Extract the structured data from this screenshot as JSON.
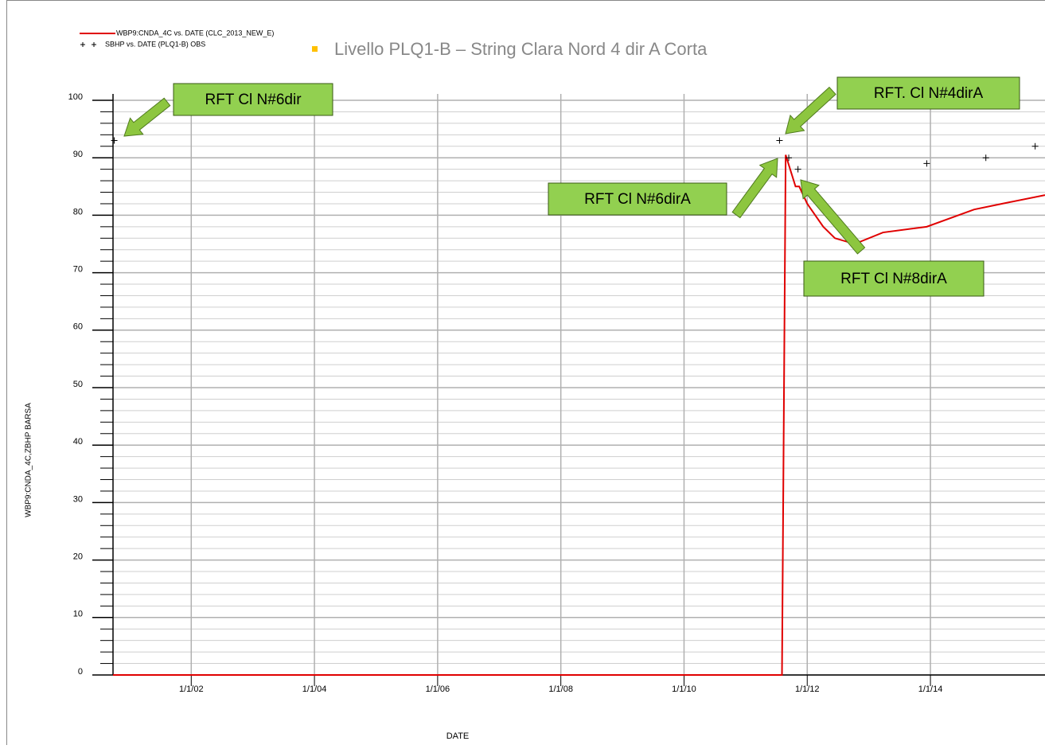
{
  "chart_data": {
    "type": "line",
    "title": "Livello PLQ1-B – String Clara Nord 4 dir A Corta",
    "x_label": "DATE",
    "y_label": "WBP9:CNDA_4C,ZBHP   BARSA",
    "xlim": [
      2000.73,
      2015.86
    ],
    "xticks": [
      {
        "value": 2002,
        "label": "1/1/02"
      },
      {
        "value": 2004,
        "label": "1/1/04"
      },
      {
        "value": 2006,
        "label": "1/1/06"
      },
      {
        "value": 2008,
        "label": "1/1/08"
      },
      {
        "value": 2010,
        "label": "1/1/10"
      },
      {
        "value": 2012,
        "label": "1/1/12"
      },
      {
        "value": 2014,
        "label": "1/1/14"
      }
    ],
    "ylim": [
      0,
      100
    ],
    "yticks": [
      0,
      10,
      20,
      30,
      40,
      50,
      60,
      70,
      80,
      90,
      100
    ],
    "yminorticks": [
      2,
      4,
      6,
      8,
      12,
      14,
      16,
      18,
      22,
      24,
      26,
      28,
      32,
      34,
      36,
      38,
      42,
      44,
      46,
      48,
      52,
      54,
      56,
      58,
      62,
      64,
      66,
      68,
      72,
      74,
      76,
      78,
      82,
      84,
      86,
      88,
      92,
      94,
      96,
      98
    ],
    "grid": true,
    "series": [
      {
        "name": "WBP9:CNDA_4C  vs.  DATE (CLC_2013_NEW_E)",
        "color": "#e00000",
        "marker": "none",
        "x": [
          2000.73,
          2011.59,
          2011.65,
          2011.81,
          2011.87,
          2012.0,
          2012.26,
          2012.45,
          2012.77,
          2013.23,
          2013.94,
          2014.71,
          2015.16,
          2015.86
        ],
        "values": [
          0,
          0,
          90.5,
          85,
          85,
          82,
          78,
          76,
          75,
          77,
          78,
          81,
          82,
          83.5
        ]
      },
      {
        "name": "SBHP  vs.  DATE (PLQ1-B) OBS",
        "color": "#000000",
        "marker": "plus",
        "x": [
          2000.75,
          2011.55,
          2011.7,
          2011.85,
          2013.94,
          2014.9,
          2015.7
        ],
        "values": [
          93,
          93,
          90,
          88,
          89,
          90,
          92
        ]
      }
    ],
    "annotations": [
      "RFT Cl N#6dir",
      "RFT. Cl N#4dirA",
      "RFT Cl N#6dirA",
      "RFT Cl N#8dirA"
    ]
  }
}
